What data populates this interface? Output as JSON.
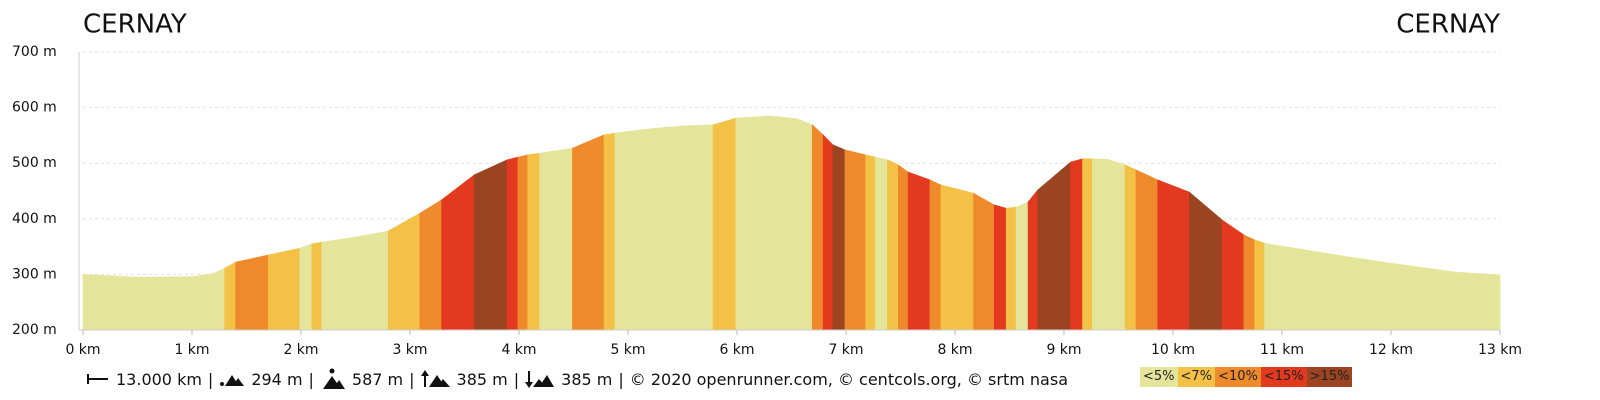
{
  "chart_data": {
    "type": "area",
    "title_left": "CERNAY",
    "title_right": "CERNAY",
    "xlim": [
      0,
      13
    ],
    "ylim": [
      200,
      700
    ],
    "xticks": [
      {
        "value": 0,
        "label": "0 km"
      },
      {
        "value": 1,
        "label": "1 km"
      },
      {
        "value": 2,
        "label": "2 km"
      },
      {
        "value": 3,
        "label": "3 km"
      },
      {
        "value": 4,
        "label": "4 km"
      },
      {
        "value": 5,
        "label": "5 km"
      },
      {
        "value": 6,
        "label": "6 km"
      },
      {
        "value": 7,
        "label": "7 km"
      },
      {
        "value": 8,
        "label": "8 km"
      },
      {
        "value": 9,
        "label": "9 km"
      },
      {
        "value": 10,
        "label": "10 km"
      },
      {
        "value": 11,
        "label": "11 km"
      },
      {
        "value": 12,
        "label": "12 km"
      },
      {
        "value": 13,
        "label": "13 km"
      }
    ],
    "yticks": [
      {
        "value": 200,
        "label": "200 m"
      },
      {
        "value": 300,
        "label": "300 m"
      },
      {
        "value": 400,
        "label": "400 m"
      },
      {
        "value": 500,
        "label": "500 m"
      },
      {
        "value": 600,
        "label": "600 m"
      },
      {
        "value": 700,
        "label": "700 m"
      }
    ],
    "grid": true,
    "x": [
      0,
      0.5,
      1,
      1.2,
      1.3,
      1.4,
      1.7,
      1.99,
      2.1,
      2.19,
      2.5,
      2.8,
      3.09,
      3.29,
      3.59,
      3.89,
      3.99,
      4.08,
      4.19,
      4.49,
      4.78,
      4.88,
      5.2,
      5.5,
      5.78,
      5.99,
      6.3,
      6.55,
      6.69,
      6.79,
      6.88,
      6.99,
      7.18,
      7.27,
      7.38,
      7.48,
      7.57,
      7.77,
      7.87,
      8.17,
      8.36,
      8.47,
      8.56,
      8.67,
      8.76,
      9.06,
      9.17,
      9.26,
      9.4,
      9.56,
      9.66,
      9.86,
      10.15,
      10.45,
      10.65,
      10.75,
      10.84,
      11.5,
      12,
      12.6,
      13
    ],
    "elevation": [
      300,
      295,
      296,
      302,
      311,
      322,
      335,
      347,
      355,
      358,
      367,
      378,
      410,
      434,
      479,
      506,
      511,
      515,
      518,
      527,
      551,
      554,
      562,
      567,
      569,
      581,
      585,
      580,
      569,
      551,
      533,
      524,
      515,
      511,
      506,
      497,
      484,
      470,
      461,
      446,
      425,
      419,
      421,
      430,
      452,
      502,
      508,
      508,
      507,
      497,
      488,
      470,
      448,
      398,
      371,
      362,
      356,
      335,
      320,
      304,
      299
    ],
    "grade": [
      0,
      0,
      0,
      0,
      1,
      2,
      1,
      0,
      1,
      0,
      0,
      1,
      2,
      3,
      4,
      3,
      2,
      1,
      0,
      2,
      1,
      0,
      0,
      0,
      1,
      0,
      0,
      0,
      2,
      3,
      4,
      2,
      1,
      0,
      1,
      2,
      3,
      2,
      1,
      2,
      3,
      1,
      0,
      3,
      4,
      3,
      1,
      0,
      0,
      1,
      2,
      3,
      4,
      3,
      2,
      1,
      0,
      0,
      0,
      0,
      null
    ],
    "legend": [
      {
        "label": "<5%",
        "color": "#e4e59b"
      },
      {
        "label": "<7%",
        "color": "#f2c145"
      },
      {
        "label": "<10%",
        "color": "#ef8a2c"
      },
      {
        "label": "<15%",
        "color": "#e3391f"
      },
      {
        "label": ">15%",
        "color": "#9a4422"
      }
    ]
  },
  "stats": {
    "distance": "13.000 km",
    "min_elevation": "294 m",
    "max_elevation": "587 m",
    "ascent": "385 m",
    "descent": "385 m",
    "separator": "|",
    "credits": "© 2020 openrunner.com, © centcols.org, © srtm nasa"
  }
}
